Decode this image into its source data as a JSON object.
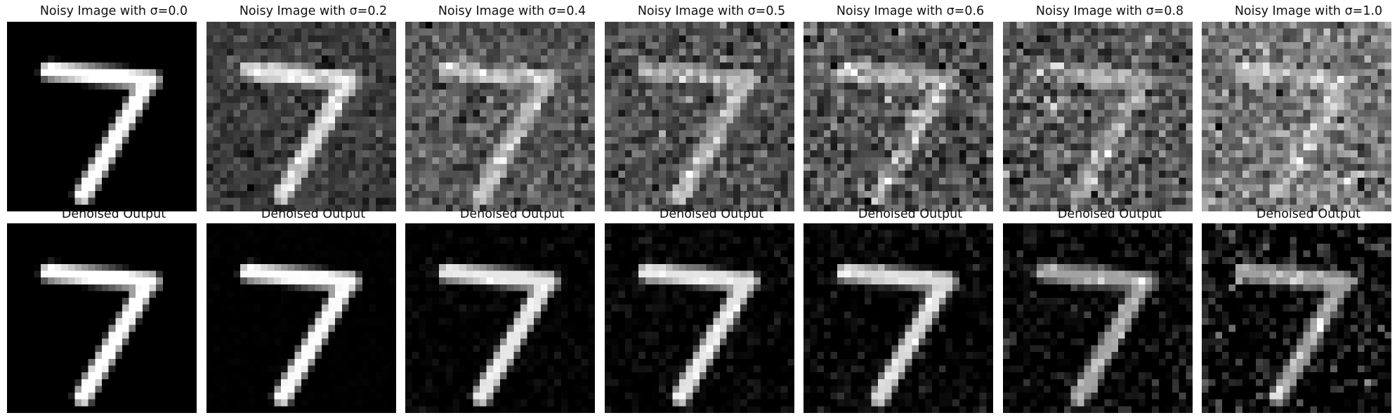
{
  "figure": {
    "noisy_row": {
      "panels": [
        {
          "title": "Noisy Image with σ=0.0",
          "sigma": 0.0
        },
        {
          "title": "Noisy Image with σ=0.2",
          "sigma": 0.2
        },
        {
          "title": "Noisy Image with σ=0.4",
          "sigma": 0.4
        },
        {
          "title": "Noisy Image with σ=0.5",
          "sigma": 0.5
        },
        {
          "title": "Noisy Image with σ=0.6",
          "sigma": 0.6
        },
        {
          "title": "Noisy Image with σ=0.8",
          "sigma": 0.8
        },
        {
          "title": "Noisy Image with σ=1.0",
          "sigma": 1.0
        }
      ]
    },
    "denoised_row": {
      "panels": [
        {
          "title": "Denoised Output"
        },
        {
          "title": "Denoised Output"
        },
        {
          "title": "Denoised Output"
        },
        {
          "title": "Denoised Output"
        },
        {
          "title": "Denoised Output"
        },
        {
          "title": "Denoised Output"
        },
        {
          "title": "Denoised Output"
        }
      ]
    }
  }
}
